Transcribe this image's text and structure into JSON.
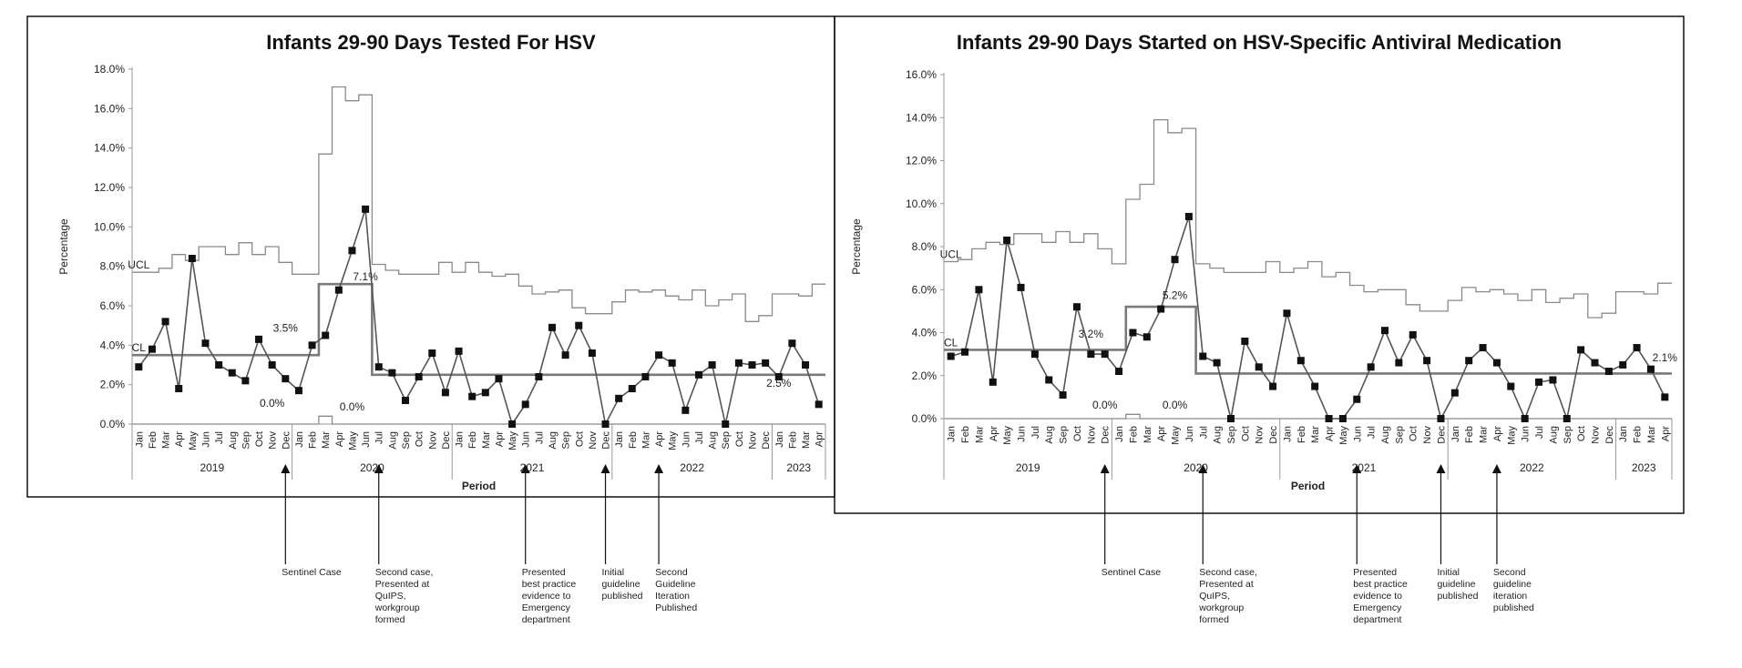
{
  "events": [
    {
      "month_index": 11,
      "lines": [
        "Sentinel Case"
      ]
    },
    {
      "month_index": 18,
      "lines": [
        "Second case,",
        "Presented at",
        "QuIPS,",
        "workgroup",
        "formed"
      ]
    },
    {
      "month_index": 29,
      "lines": [
        "Presented",
        "best practice",
        "evidence to",
        "Emergency",
        "department"
      ]
    },
    {
      "month_index": 35,
      "lines": [
        "Initial",
        "guideline",
        "published"
      ]
    },
    {
      "month_index": 39,
      "lines": [
        "Second",
        "Guideline",
        "Iteration",
        "Published"
      ]
    }
  ],
  "events_right": [
    {
      "month_index": 11,
      "lines": [
        "Sentinel Case"
      ]
    },
    {
      "month_index": 18,
      "lines": [
        "Second case,",
        "Presented at",
        "QuIPS,",
        "workgroup",
        "formed"
      ]
    },
    {
      "month_index": 29,
      "lines": [
        "Presented",
        "best practice",
        "evidence to",
        "Emergency",
        "department"
      ]
    },
    {
      "month_index": 35,
      "lines": [
        "Initial",
        "guideline",
        "published"
      ]
    },
    {
      "month_index": 39,
      "lines": [
        "Second",
        "guideline",
        "iteration",
        "published"
      ]
    }
  ],
  "chart_data": [
    {
      "type": "line",
      "title": "Infants 29-90 Days Tested For HSV",
      "xlabel": "Period",
      "ylabel": "Percentage",
      "ylim": [
        0,
        18
      ],
      "yticks": [
        "0.0%",
        "2.0%",
        "4.0%",
        "6.0%",
        "8.0%",
        "10.0%",
        "12.0%",
        "14.0%",
        "16.0%",
        "18.0%"
      ],
      "categories": [
        "Jan",
        "Feb",
        "Mar",
        "Apr",
        "May",
        "Jun",
        "Jul",
        "Aug",
        "Sep",
        "Oct",
        "Nov",
        "Dec",
        "Jan",
        "Feb",
        "Mar",
        "Apr",
        "May",
        "Jun",
        "Jul",
        "Aug",
        "Sep",
        "Oct",
        "Nov",
        "Dec",
        "Jan",
        "Feb",
        "Mar",
        "Apr",
        "May",
        "Jun",
        "Jul",
        "Aug",
        "Sep",
        "Oct",
        "Nov",
        "Dec",
        "Jan",
        "Feb",
        "Mar",
        "Apr",
        "May",
        "Jun",
        "Jul",
        "Aug",
        "Sep",
        "Oct",
        "Nov",
        "Dec",
        "Jan",
        "Feb",
        "Mar",
        "Apr"
      ],
      "years": [
        {
          "label": "2019",
          "start": 0,
          "end": 11
        },
        {
          "label": "2020",
          "start": 12,
          "end": 23
        },
        {
          "label": "2021",
          "start": 24,
          "end": 35
        },
        {
          "label": "2022",
          "start": 36,
          "end": 47
        },
        {
          "label": "2023",
          "start": 48,
          "end": 51
        }
      ],
      "series": [
        {
          "name": "Percentage",
          "values": [
            2.9,
            3.8,
            5.2,
            1.8,
            8.4,
            4.1,
            3.0,
            2.6,
            2.2,
            4.3,
            3.0,
            2.3,
            1.7,
            4.0,
            4.5,
            6.8,
            8.8,
            10.9,
            2.9,
            2.6,
            1.2,
            2.4,
            3.6,
            1.6,
            3.7,
            1.4,
            1.6,
            2.3,
            0.0,
            1.0,
            2.4,
            4.9,
            3.5,
            5.0,
            3.6,
            0.0,
            1.3,
            1.8,
            2.4,
            3.5,
            3.1,
            0.7,
            2.5,
            3.0,
            0.0,
            3.1,
            3.0,
            3.1,
            2.4,
            4.1,
            3.0,
            1.0
          ]
        },
        {
          "name": "UCL",
          "values": [
            7.7,
            7.7,
            7.9,
            8.6,
            8.3,
            9.0,
            9.0,
            8.6,
            9.2,
            8.6,
            9.0,
            8.2,
            7.6,
            7.6,
            13.7,
            17.1,
            16.4,
            16.7,
            8.1,
            7.8,
            7.6,
            7.6,
            7.6,
            8.2,
            7.7,
            8.2,
            7.7,
            7.5,
            7.6,
            7.0,
            6.6,
            6.7,
            6.8,
            5.9,
            5.6,
            5.6,
            6.2,
            6.8,
            6.7,
            6.8,
            6.5,
            6.3,
            6.8,
            6.0,
            6.3,
            6.6,
            5.2,
            5.5,
            6.6,
            6.6,
            6.5,
            7.1
          ]
        },
        {
          "name": "CL",
          "values": [
            3.5,
            3.5,
            3.5,
            3.5,
            3.5,
            3.5,
            3.5,
            3.5,
            3.5,
            3.5,
            3.5,
            3.5,
            3.5,
            3.5,
            7.1,
            7.1,
            7.1,
            7.1,
            2.5,
            2.5,
            2.5,
            2.5,
            2.5,
            2.5,
            2.5,
            2.5,
            2.5,
            2.5,
            2.5,
            2.5,
            2.5,
            2.5,
            2.5,
            2.5,
            2.5,
            2.5,
            2.5,
            2.5,
            2.5,
            2.5,
            2.5,
            2.5,
            2.5,
            2.5,
            2.5,
            2.5,
            2.5,
            2.5,
            2.5,
            2.5,
            2.5,
            2.5
          ]
        },
        {
          "name": "LCL",
          "values": [
            0,
            0,
            0,
            0,
            0,
            0,
            0,
            0,
            0,
            0,
            0,
            0,
            0,
            0,
            0.4,
            0,
            0,
            0,
            0,
            0,
            0,
            0,
            0,
            0,
            0,
            0,
            0,
            0,
            0,
            0,
            0,
            0,
            0,
            0,
            0,
            0,
            0,
            0,
            0,
            0,
            0,
            0,
            0,
            0,
            0,
            0,
            0,
            0,
            0,
            0,
            0,
            0
          ]
        }
      ],
      "annotations": [
        {
          "text": "UCL",
          "x": 0,
          "y": 7.7
        },
        {
          "text": "CL",
          "x": 0,
          "y": 3.5
        },
        {
          "text": "3.5%",
          "x": 11,
          "y": 4.5
        },
        {
          "text": "7.1%",
          "x": 17,
          "y": 7.1
        },
        {
          "text": "0.0%",
          "x": 10,
          "y": 0.7
        },
        {
          "text": "0.0%",
          "x": 16,
          "y": 0.5
        },
        {
          "text": "2.5%",
          "x": 48,
          "y": 1.7
        }
      ]
    },
    {
      "type": "line",
      "title": "Infants 29-90 Days Started on HSV-Specific Antiviral Medication",
      "xlabel": "Period",
      "ylabel": "Percentage",
      "ylim": [
        0,
        16
      ],
      "yticks": [
        "0.0%",
        "2.0%",
        "4.0%",
        "6.0%",
        "8.0%",
        "10.0%",
        "12.0%",
        "14.0%",
        "16.0%"
      ],
      "categories": [
        "Jan",
        "Feb",
        "Mar",
        "Apr",
        "May",
        "Jun",
        "Jul",
        "Aug",
        "Sep",
        "Oct",
        "Nov",
        "Dec",
        "Jan",
        "Feb",
        "Mar",
        "Apr",
        "May",
        "Jun",
        "Jul",
        "Aug",
        "Sep",
        "Oct",
        "Nov",
        "Dec",
        "Jan",
        "Feb",
        "Mar",
        "Apr",
        "May",
        "Jun",
        "Jul",
        "Aug",
        "Sep",
        "Oct",
        "Nov",
        "Dec",
        "Jan",
        "Feb",
        "Mar",
        "Apr",
        "May",
        "Jun",
        "Jul",
        "Aug",
        "Sep",
        "Oct",
        "Nov",
        "Dec",
        "Jan",
        "Feb",
        "Mar",
        "Apr"
      ],
      "years": [
        {
          "label": "2019",
          "start": 0,
          "end": 11
        },
        {
          "label": "2020",
          "start": 12,
          "end": 23
        },
        {
          "label": "2021",
          "start": 24,
          "end": 35
        },
        {
          "label": "2022",
          "start": 36,
          "end": 47
        },
        {
          "label": "2023",
          "start": 48,
          "end": 51
        }
      ],
      "series": [
        {
          "name": "Percentage",
          "values": [
            2.9,
            3.1,
            6.0,
            1.7,
            8.3,
            6.1,
            3.0,
            1.8,
            1.1,
            5.2,
            3.0,
            3.0,
            2.2,
            4.0,
            3.8,
            5.1,
            7.4,
            9.4,
            2.9,
            2.6,
            0.0,
            3.6,
            2.4,
            1.5,
            4.9,
            2.7,
            1.5,
            0.0,
            0.0,
            0.9,
            2.4,
            4.1,
            2.6,
            3.9,
            2.7,
            0.0,
            1.2,
            2.7,
            3.3,
            2.6,
            1.5,
            0.0,
            1.7,
            1.8,
            0.0,
            3.2,
            2.6,
            2.2,
            2.5,
            3.3,
            2.3,
            1.0
          ]
        },
        {
          "name": "UCL",
          "values": [
            7.3,
            7.4,
            7.9,
            8.2,
            8.1,
            8.6,
            8.6,
            8.2,
            8.7,
            8.2,
            8.6,
            7.9,
            7.2,
            10.2,
            10.9,
            13.9,
            13.3,
            13.5,
            7.2,
            7.0,
            6.8,
            6.8,
            6.8,
            7.3,
            6.8,
            7.0,
            7.3,
            6.6,
            6.8,
            6.2,
            5.9,
            6.0,
            6.0,
            5.3,
            5.0,
            5.0,
            5.5,
            6.1,
            5.9,
            6.0,
            5.8,
            5.5,
            6.0,
            5.4,
            5.6,
            5.8,
            4.7,
            4.9,
            5.9,
            5.9,
            5.8,
            6.3
          ]
        },
        {
          "name": "CL",
          "values": [
            3.2,
            3.2,
            3.2,
            3.2,
            3.2,
            3.2,
            3.2,
            3.2,
            3.2,
            3.2,
            3.2,
            3.2,
            3.2,
            5.2,
            5.2,
            5.2,
            5.2,
            5.2,
            2.1,
            2.1,
            2.1,
            2.1,
            2.1,
            2.1,
            2.1,
            2.1,
            2.1,
            2.1,
            2.1,
            2.1,
            2.1,
            2.1,
            2.1,
            2.1,
            2.1,
            2.1,
            2.1,
            2.1,
            2.1,
            2.1,
            2.1,
            2.1,
            2.1,
            2.1,
            2.1,
            2.1,
            2.1,
            2.1,
            2.1,
            2.1,
            2.1,
            2.1
          ]
        },
        {
          "name": "LCL",
          "values": [
            0,
            0,
            0,
            0,
            0,
            0,
            0,
            0,
            0,
            0,
            0,
            0,
            0,
            0.2,
            0,
            0,
            0,
            0,
            0,
            0,
            0,
            0,
            0,
            0,
            0,
            0,
            0,
            0,
            0,
            0,
            0,
            0,
            0,
            0,
            0,
            0,
            0,
            0,
            0,
            0,
            0,
            0,
            0,
            0,
            0,
            0,
            0,
            0,
            0,
            0,
            0,
            0
          ]
        }
      ],
      "annotations": [
        {
          "text": "UCL",
          "x": 0,
          "y": 7.3
        },
        {
          "text": "CL",
          "x": 0,
          "y": 3.2
        },
        {
          "text": "3.2%",
          "x": 10,
          "y": 3.6
        },
        {
          "text": "5.2%",
          "x": 16,
          "y": 5.4
        },
        {
          "text": "0.0%",
          "x": 11,
          "y": 0.3
        },
        {
          "text": "0.0%",
          "x": 16,
          "y": 0.3
        },
        {
          "text": "2.1%",
          "x": 51,
          "y": 2.5
        }
      ]
    }
  ]
}
